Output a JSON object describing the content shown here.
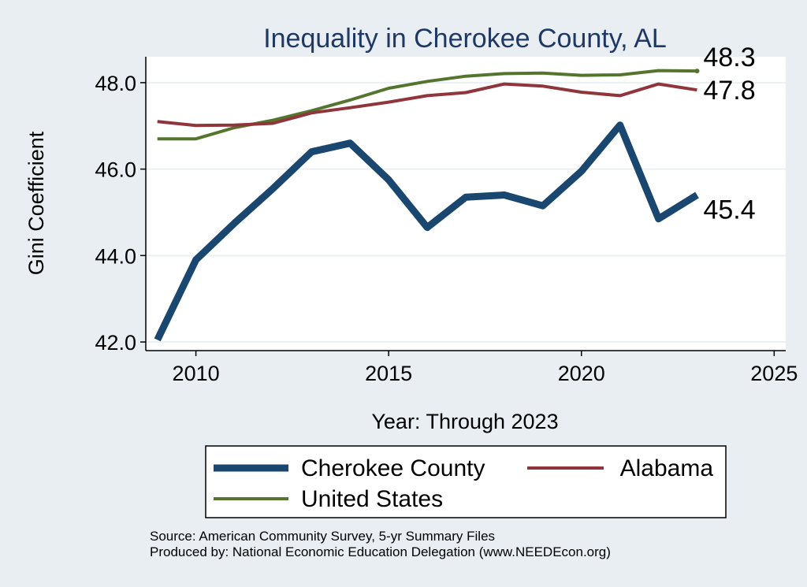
{
  "chart_data": {
    "type": "line",
    "title": "Inequality in Cherokee County, AL",
    "xlabel": "Year: Through 2023",
    "ylabel": "Gini Coefficient",
    "xlim": [
      2008.7,
      2025.3
    ],
    "ylim": [
      41.8,
      48.6
    ],
    "x_ticks": [
      2010,
      2015,
      2020,
      2025
    ],
    "y_ticks": [
      42,
      44,
      46,
      48
    ],
    "y_tick_labels": [
      "42.0",
      "44.0",
      "46.0",
      "48.0"
    ],
    "x": [
      2009,
      2010,
      2011,
      2012,
      2013,
      2014,
      2015,
      2016,
      2017,
      2018,
      2019,
      2020,
      2021,
      2022,
      2023
    ],
    "series": [
      {
        "name": "Cherokee County",
        "color": "#1a476f",
        "values": [
          42.05,
          43.9,
          44.75,
          45.55,
          46.4,
          46.6,
          45.75,
          44.65,
          45.35,
          45.4,
          45.15,
          45.95,
          47.02,
          44.85,
          45.4
        ],
        "end_label": "45.4"
      },
      {
        "name": "Alabama",
        "color": "#90353b",
        "values": [
          47.1,
          47.01,
          47.02,
          47.06,
          47.3,
          47.42,
          47.55,
          47.7,
          47.77,
          47.97,
          47.92,
          47.78,
          47.7,
          47.97,
          47.83
        ],
        "end_label": "47.8"
      },
      {
        "name": "United States",
        "color": "#55752f",
        "values": [
          46.7,
          46.7,
          46.96,
          47.13,
          47.35,
          47.6,
          47.87,
          48.03,
          48.15,
          48.21,
          48.22,
          48.17,
          48.18,
          48.28,
          48.27
        ],
        "end_label": "48.3"
      }
    ],
    "legend": {
      "position": "bottom",
      "entries": [
        "Cherokee County",
        "Alabama",
        "United States"
      ]
    }
  },
  "source": {
    "line1": "Source: American Community Survey, 5-yr Summary Files",
    "line2": "Produced by: National Economic Education Delegation (www.NEEDEcon.org)"
  }
}
